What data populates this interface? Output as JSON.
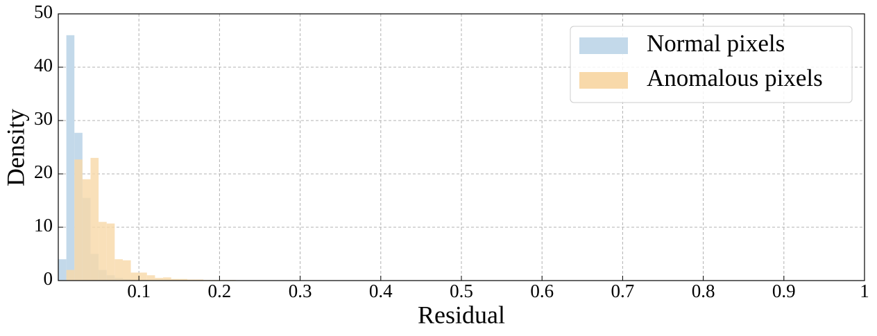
{
  "chart_data": {
    "type": "histogram",
    "x_label": "Residual",
    "y_label": "Density",
    "xlim": [
      0,
      1
    ],
    "ylim": [
      0,
      50
    ],
    "xticks": [
      0.1,
      0.2,
      0.3,
      0.4,
      0.5,
      0.6,
      0.7,
      0.8,
      0.9,
      1
    ],
    "yticks": [
      0,
      10,
      20,
      30,
      40,
      50
    ],
    "grid": true,
    "legend_position": "upper right",
    "series": [
      {
        "name": "Normal pixels",
        "color": "#c3d9ea",
        "bins": [
          0,
          0.01,
          0.02,
          0.03,
          0.04,
          0.05,
          0.06,
          0.07,
          0.08,
          0.09,
          0.1
        ],
        "values": [
          4,
          46,
          27.7,
          15.5,
          5,
          2,
          1,
          0.5,
          0.3,
          0.2
        ]
      },
      {
        "name": "Anomalous pixels",
        "color": "#f8d9aa",
        "bins": [
          0.01,
          0.02,
          0.03,
          0.04,
          0.05,
          0.06,
          0.07,
          0.08,
          0.09,
          0.1,
          0.11,
          0.12,
          0.13,
          0.14,
          0.15,
          0.16,
          0.17,
          0.18,
          0.19,
          0.2,
          0.21,
          0.22,
          0.23,
          0.24,
          0.25
        ],
        "values": [
          2,
          22.7,
          19,
          23,
          11,
          10.7,
          4,
          3.8,
          1.5,
          1.5,
          1,
          0.5,
          0.6,
          0.3,
          0.3,
          0.2,
          0.2,
          0.1,
          0.1,
          0.1,
          0.1,
          0.05,
          0.05,
          0.05
        ]
      }
    ]
  }
}
